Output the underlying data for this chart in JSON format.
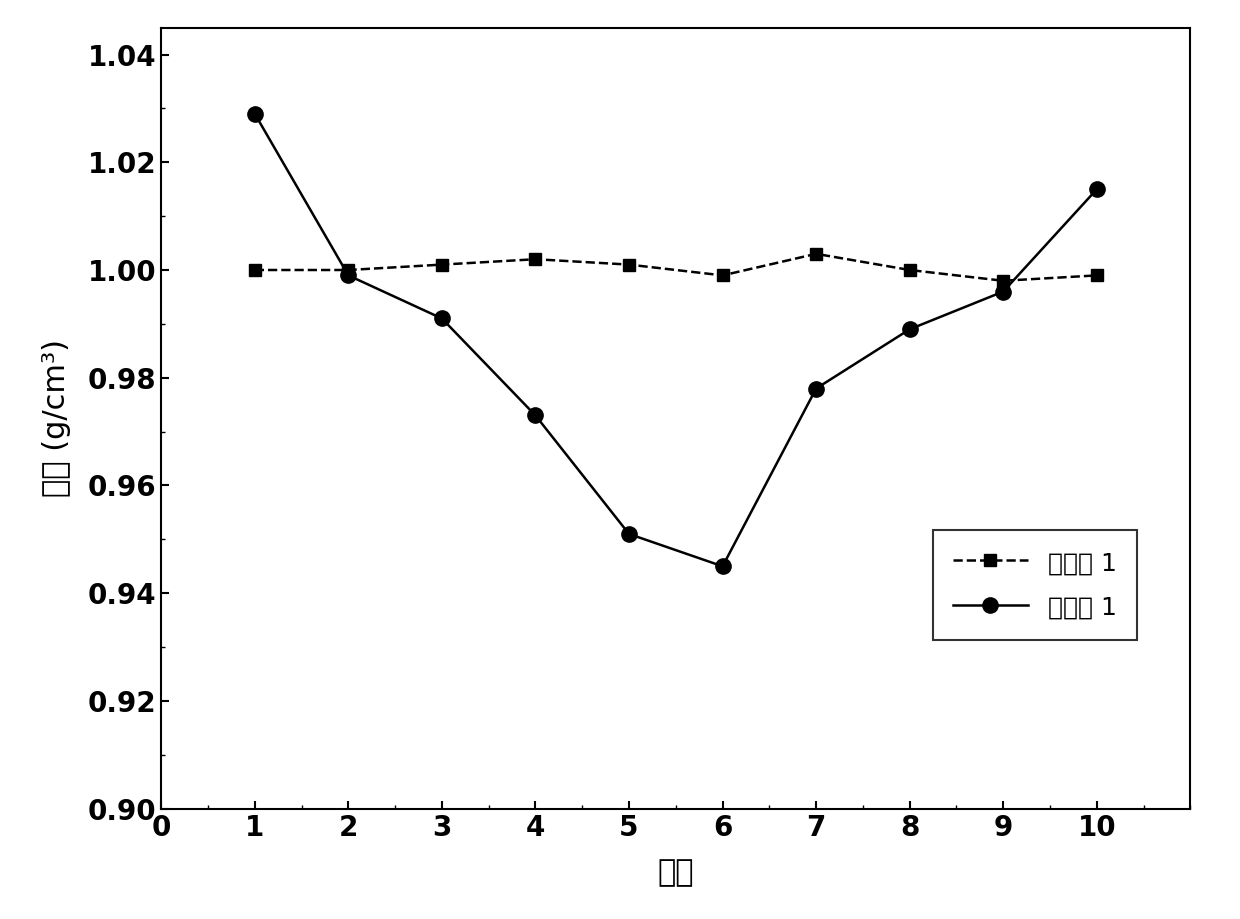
{
  "x": [
    1,
    2,
    3,
    4,
    5,
    6,
    7,
    8,
    9,
    10
  ],
  "series1_y": [
    1.0,
    1.0,
    1.001,
    1.002,
    1.001,
    0.999,
    1.003,
    1.0,
    0.998,
    0.999
  ],
  "series2_y": [
    1.029,
    0.999,
    0.991,
    0.973,
    0.951,
    0.945,
    0.978,
    0.989,
    0.996,
    1.015
  ],
  "series1_label": "实施例 1",
  "series2_label": "对比例 1",
  "xlabel": "编号",
  "ylabel": "密度 (g/cm³)",
  "xlim": [
    0,
    11
  ],
  "ylim": [
    0.9,
    1.045
  ],
  "yticks": [
    0.9,
    0.92,
    0.94,
    0.96,
    0.98,
    1.0,
    1.02,
    1.04
  ],
  "xticks": [
    0,
    1,
    2,
    3,
    4,
    5,
    6,
    7,
    8,
    9,
    10
  ],
  "line_color": "#000000",
  "marker1": "s",
  "marker2": "o",
  "markersize1": 9,
  "markersize2": 11,
  "linewidth": 1.8,
  "label_fontsize": 22,
  "tick_fontsize": 20,
  "legend_fontsize": 18
}
